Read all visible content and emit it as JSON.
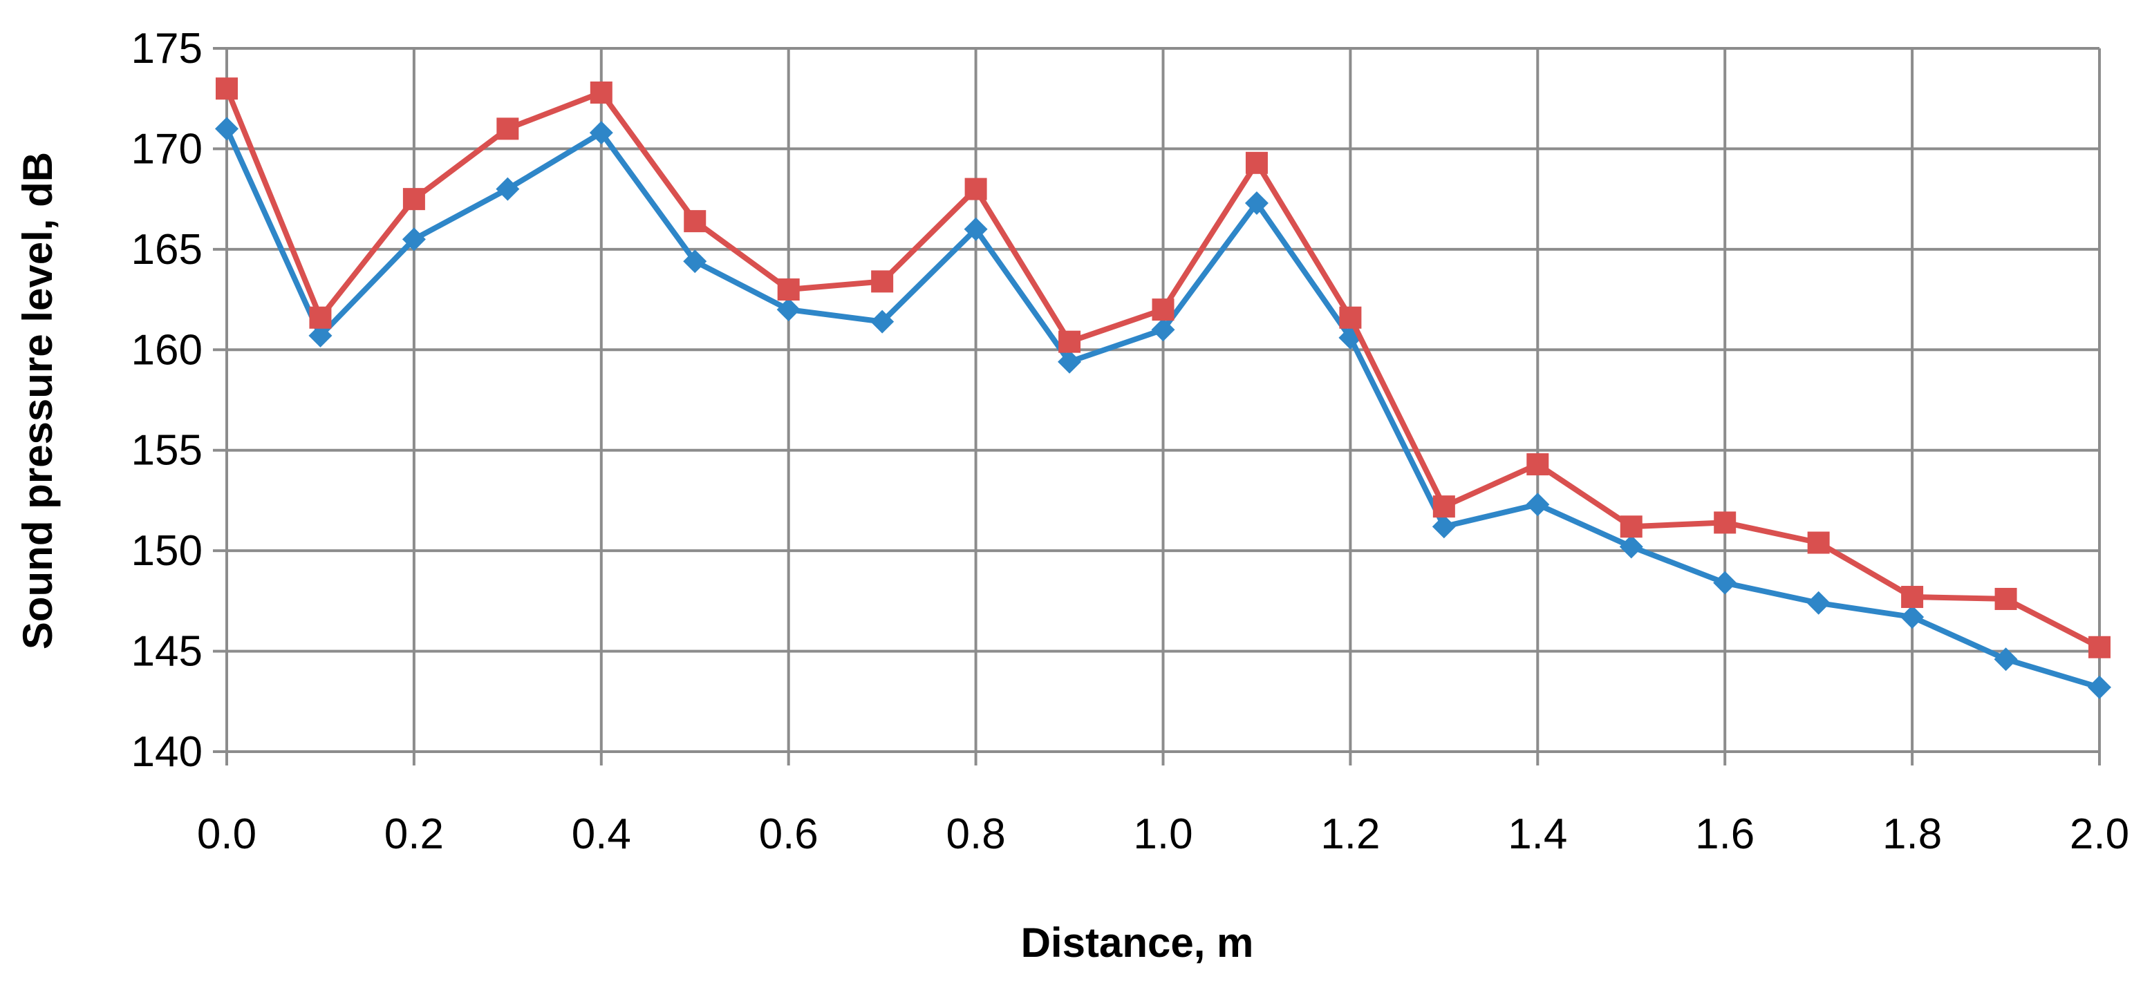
{
  "chart_data": {
    "type": "line",
    "xlabel": "Distance, m",
    "ylabel": "Sound pressure level, dB",
    "xlim": [
      0,
      2.0
    ],
    "ylim": [
      140,
      175
    ],
    "x_ticks": [
      "0.0",
      "0.2",
      "0.4",
      "0.6",
      "0.8",
      "1.0",
      "1.2",
      "1.4",
      "1.6",
      "1.8",
      "2.0"
    ],
    "y_ticks": [
      "140",
      "145",
      "150",
      "155",
      "160",
      "165",
      "170",
      "175"
    ],
    "grid": true,
    "legend": "none",
    "x": [
      0.0,
      0.1,
      0.2,
      0.3,
      0.4,
      0.5,
      0.6,
      0.7,
      0.8,
      0.9,
      1.0,
      1.1,
      1.2,
      1.3,
      1.4,
      1.5,
      1.6,
      1.7,
      1.8,
      1.9,
      2.0
    ],
    "series": [
      {
        "color": "#2e86c8",
        "marker": "diamond",
        "values": [
          171.0,
          160.7,
          165.5,
          168.0,
          170.8,
          164.4,
          162.0,
          161.4,
          166.0,
          159.4,
          161.0,
          167.3,
          160.6,
          151.2,
          152.3,
          150.2,
          148.4,
          147.4,
          146.7,
          144.6,
          143.2
        ]
      },
      {
        "color": "#d9504f",
        "marker": "square",
        "values": [
          173.0,
          161.6,
          167.5,
          171.0,
          172.8,
          166.4,
          163.0,
          163.4,
          168.0,
          160.4,
          162.0,
          169.3,
          161.6,
          152.2,
          154.3,
          151.2,
          151.4,
          150.4,
          147.7,
          147.6,
          145.2
        ]
      }
    ]
  }
}
